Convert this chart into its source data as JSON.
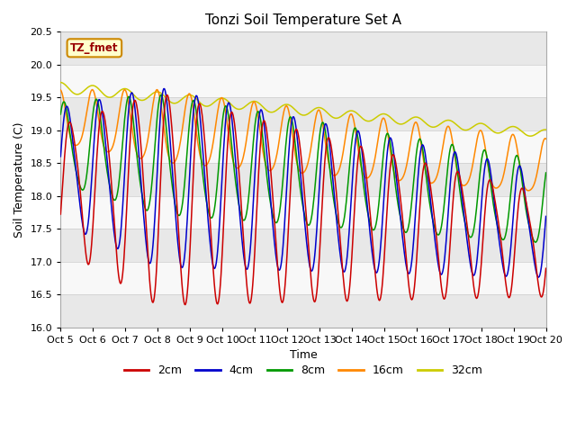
{
  "title": "Tonzi Soil Temperature Set A",
  "xlabel": "Time",
  "ylabel": "Soil Temperature (C)",
  "ylim": [
    16.0,
    20.5
  ],
  "xlim": [
    0,
    360
  ],
  "colors": {
    "2cm": "#cc0000",
    "4cm": "#0000cc",
    "8cm": "#009900",
    "16cm": "#ff8800",
    "32cm": "#cccc00"
  },
  "legend_labels": [
    "2cm",
    "4cm",
    "8cm",
    "16cm",
    "32cm"
  ],
  "annotation_text": "TZ_fmet",
  "annotation_bg": "#ffffcc",
  "annotation_border": "#cc8800",
  "tick_labels": [
    "Oct 5",
    "Oct 6",
    "Oct 7",
    "Oct 8",
    "Oct 9",
    "Oct 10",
    "Oct 11",
    "Oct 12",
    "Oct 13",
    "Oct 14",
    "Oct 15",
    "Oct 16",
    "Oct 17",
    "Oct 18",
    "Oct 19",
    "Oct 20"
  ],
  "tick_positions": [
    0,
    24,
    48,
    72,
    96,
    120,
    144,
    168,
    192,
    216,
    240,
    264,
    288,
    312,
    336,
    360
  ],
  "yticks": [
    16.0,
    16.5,
    17.0,
    17.5,
    18.0,
    18.5,
    19.0,
    19.5,
    20.0,
    20.5
  ]
}
